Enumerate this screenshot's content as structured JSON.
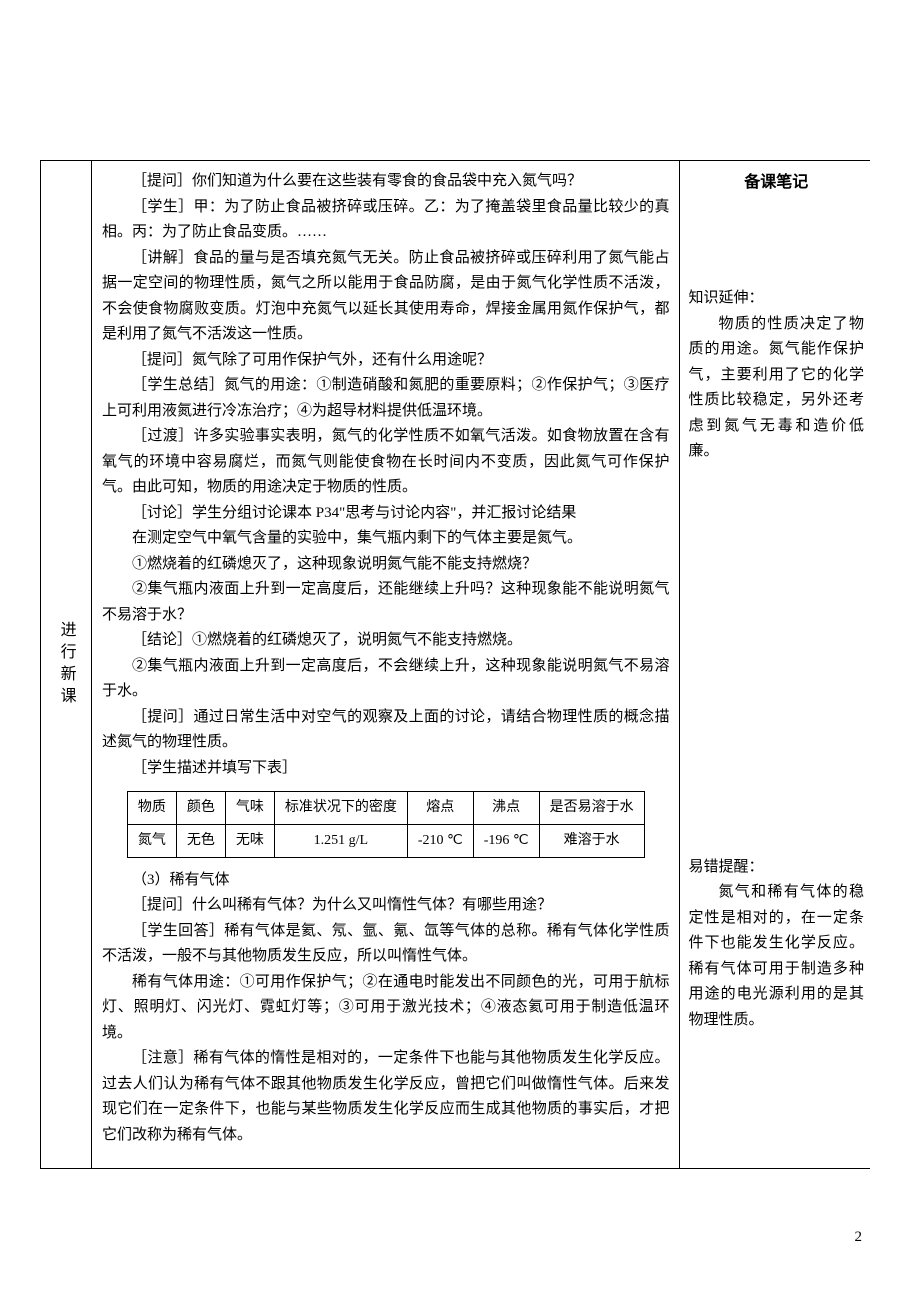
{
  "leftLabel": "进行新课",
  "notesTitle": "备课笔记",
  "paragraphs": {
    "p1": "［提问］你们知道为什么要在这些装有零食的食品袋中充入氮气吗？",
    "p2": "［学生］甲：为了防止食品被挤碎或压碎。乙：为了掩盖袋里食品量比较少的真相。丙：为了防止食品变质。……",
    "p3": "［讲解］食品的量与是否填充氮气无关。防止食品被挤碎或压碎利用了氮气能占据一定空间的物理性质，氮气之所以能用于食品防腐，是由于氮气化学性质不活泼，不会使食物腐败变质。灯泡中充氮气以延长其使用寿命，焊接金属用氮作保护气，都是利用了氮气不活泼这一性质。",
    "p4": "［提问］氮气除了可用作保护气外，还有什么用途呢？",
    "p5": "［学生总结］氮气的用途：①制造硝酸和氮肥的重要原料；②作保护气；③医疗上可利用液氮进行冷冻治疗；④为超导材料提供低温环境。",
    "p6": "［过渡］许多实验事实表明，氮气的化学性质不如氧气活泼。如食物放置在含有氧气的环境中容易腐烂，而氮气则能使食物在长时间内不变质，因此氮气可作保护气。由此可知，物质的用途决定于物质的性质。",
    "p7": "［讨论］学生分组讨论课本 P34\"思考与讨论内容\"，并汇报讨论结果",
    "p8": "在测定空气中氧气含量的实验中，集气瓶内剩下的气体主要是氮气。",
    "p9": "①燃烧着的红磷熄灭了，这种现象说明氮气能不能支持燃烧？",
    "p10": "②集气瓶内液面上升到一定高度后，还能继续上升吗？这种现象能不能说明氮气不易溶于水？",
    "p11": "［结论］①燃烧着的红磷熄灭了，说明氮气不能支持燃烧。",
    "p12": "②集气瓶内液面上升到一定高度后，不会继续上升，这种现象能说明氮气不易溶于水。",
    "p13": "［提问］通过日常生活中对空气的观察及上面的讨论，请结合物理性质的概念描述氮气的物理性质。",
    "p14": "［学生描述并填写下表］",
    "p15": "（3）稀有气体",
    "p16": "［提问］什么叫稀有气体？为什么又叫惰性气体？有哪些用途？",
    "p17": "［学生回答］稀有气体是氦、氖、氩、氪、氙等气体的总称。稀有气体化学性质不活泼，一般不与其他物质发生反应，所以叫惰性气体。",
    "p18": "稀有气体用途：①可用作保护气；②在通电时能发出不同颜色的光，可用于航标灯、照明灯、闪光灯、霓虹灯等；③可用于激光技术；④液态氦可用于制造低温环境。",
    "p19": "［注意］稀有气体的惰性是相对的，一定条件下也能与其他物质发生化学反应。过去人们认为稀有气体不跟其他物质发生化学反应，曾把它们叫做惰性气体。后来发现它们在一定条件下，也能与某些物质发生化学反应而生成其他物质的事实后，才把它们改称为稀有气体。"
  },
  "notes": {
    "n1label": "知识延伸：",
    "n1body": "物质的性质决定了物质的用途。氮气能作保护气，主要利用了它的化学性质比较稳定，另外还考虑到氮气无毒和造价低廉。",
    "n2label": "易错提醒：",
    "n2body": "氮气和稀有气体的稳定性是相对的，在一定条件下也能发生化学反应。稀有气体可用于制造多种用途的电光源利用的是其物理性质。"
  },
  "table": {
    "headers": [
      "物质",
      "颜色",
      "气味",
      "标准状况下的密度",
      "熔点",
      "沸点",
      "是否易溶于水"
    ],
    "row": [
      "氮气",
      "无色",
      "无味",
      "1.251 g/L",
      "-210 ℃",
      "-196  ℃",
      "难溶于水"
    ]
  },
  "pageNumber": "2"
}
